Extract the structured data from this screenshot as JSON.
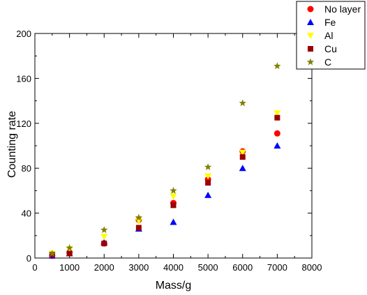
{
  "chart_data": {
    "type": "scatter",
    "xlabel": "Mass/g",
    "ylabel": "Counting rate",
    "xlim": [
      0,
      8000
    ],
    "ylim": [
      0,
      200
    ],
    "x_ticks": [
      0,
      1000,
      2000,
      3000,
      4000,
      5000,
      6000,
      7000,
      8000
    ],
    "y_ticks": [
      0,
      40,
      80,
      120,
      160,
      200
    ],
    "x_tick_labels": [
      "0",
      "1000",
      "2000",
      "3000",
      "4000",
      "5000",
      "6000",
      "7000",
      "8000"
    ],
    "y_tick_labels": [
      "0",
      "40",
      "80",
      "120",
      "160",
      "200"
    ],
    "grid": false,
    "legend_position": "top-right outside",
    "series": [
      {
        "name": "No layer",
        "marker": "circle",
        "color": "#ff0000",
        "x": [
          500,
          1000,
          2000,
          3000,
          4000,
          5000,
          6000,
          7000
        ],
        "y": [
          2,
          5,
          13,
          34,
          49,
          70,
          95,
          111
        ]
      },
      {
        "name": "Fe",
        "marker": "triangle-up",
        "color": "#0000ff",
        "x": [
          500,
          1000,
          2000,
          3000,
          4000,
          5000,
          6000,
          7000
        ],
        "y": [
          2,
          4,
          14,
          26,
          32,
          56,
          80,
          100
        ]
      },
      {
        "name": "Al",
        "marker": "triangle-down",
        "color": "#ffff00",
        "x": [
          500,
          1000,
          2000,
          3000,
          4000,
          5000,
          6000,
          7000
        ],
        "y": [
          4,
          8,
          19,
          33,
          55,
          73,
          94,
          129
        ]
      },
      {
        "name": "Cu",
        "marker": "square",
        "color": "#990000",
        "x": [
          500,
          1000,
          2000,
          3000,
          4000,
          5000,
          6000,
          7000
        ],
        "y": [
          3,
          4,
          13,
          27,
          47,
          67,
          90,
          125
        ]
      },
      {
        "name": "C",
        "marker": "star",
        "color": "#808000",
        "x": [
          500,
          1000,
          2000,
          3000,
          4000,
          5000,
          6000,
          7000
        ],
        "y": [
          4,
          9,
          25,
          36,
          60,
          81,
          138,
          171
        ]
      }
    ]
  }
}
